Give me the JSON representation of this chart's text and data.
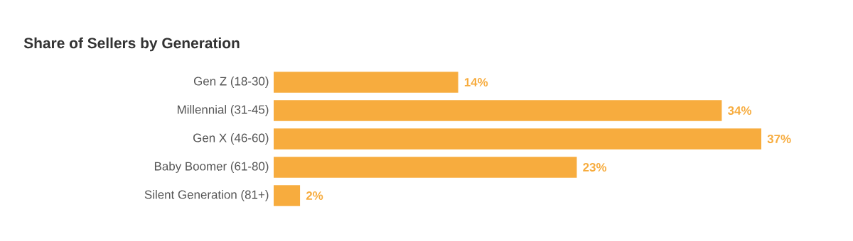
{
  "chart_data": {
    "type": "bar",
    "orientation": "horizontal",
    "title": "Share of Sellers by Generation",
    "categories": [
      "Gen Z (18-30)",
      "Millennial (31-45)",
      "Gen X (46-60)",
      "Baby Boomer (61-80)",
      "Silent Generation (81+)"
    ],
    "values": [
      14,
      34,
      37,
      23,
      2
    ],
    "value_labels": [
      "14%",
      "34%",
      "37%",
      "23%",
      "2%"
    ],
    "color": "#f7ac3e"
  }
}
